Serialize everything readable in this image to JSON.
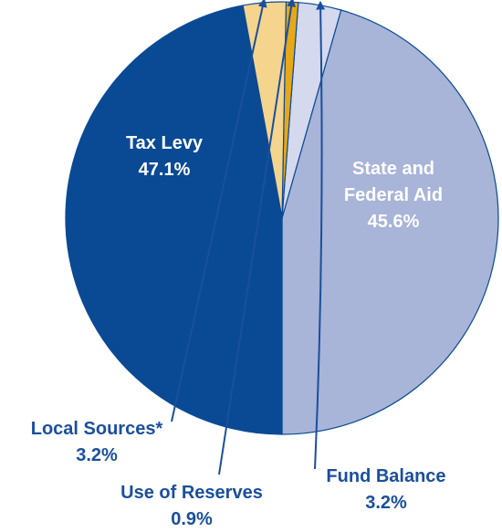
{
  "chart_data": {
    "type": "pie",
    "slices": [
      {
        "label": "State and Federal Aid",
        "label_lines": [
          "State and",
          "Federal Aid"
        ],
        "value": 45.6,
        "value_text": "45.6%",
        "color": "#a8b4d8"
      },
      {
        "label": "Fund Balance",
        "label_lines": [
          "Fund Balance"
        ],
        "value": 3.2,
        "value_text": "3.2%",
        "color": "#d4d9ee"
      },
      {
        "label": "Use of Reserves",
        "label_lines": [
          "Use of Reserves"
        ],
        "value": 0.9,
        "value_text": "0.9%",
        "color": "#e6a817"
      },
      {
        "label": "Local Sources*",
        "label_lines": [
          "Local Sources*"
        ],
        "value": 3.2,
        "value_text": "3.2%",
        "color": "#f5d48e"
      },
      {
        "label": "Tax Levy",
        "label_lines": [
          "Tax Levy"
        ],
        "value": 47.1,
        "value_text": "47.1%",
        "color": "#0a4a94"
      }
    ],
    "colors": {
      "outline": "#0a4a94",
      "inside_text": "#ffffff",
      "outside_text": "#1a4f9c",
      "leader": "#1a4f9c"
    }
  }
}
